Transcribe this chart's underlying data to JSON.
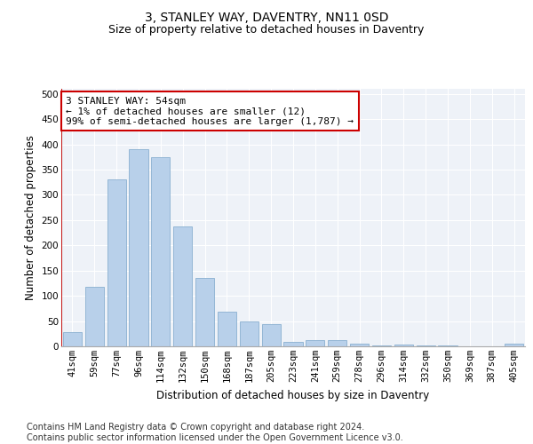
{
  "title": "3, STANLEY WAY, DAVENTRY, NN11 0SD",
  "subtitle": "Size of property relative to detached houses in Daventry",
  "xlabel": "Distribution of detached houses by size in Daventry",
  "ylabel": "Number of detached properties",
  "categories": [
    "41sqm",
    "59sqm",
    "77sqm",
    "96sqm",
    "114sqm",
    "132sqm",
    "150sqm",
    "168sqm",
    "187sqm",
    "205sqm",
    "223sqm",
    "241sqm",
    "259sqm",
    "278sqm",
    "296sqm",
    "314sqm",
    "332sqm",
    "350sqm",
    "369sqm",
    "387sqm",
    "405sqm"
  ],
  "values": [
    28,
    118,
    330,
    390,
    375,
    238,
    135,
    68,
    50,
    44,
    8,
    12,
    12,
    5,
    2,
    3,
    1,
    1,
    0,
    0,
    6
  ],
  "bar_color": "#b8d0ea",
  "bar_edge_color": "#8ab0d0",
  "annotation_line_color": "#cc0000",
  "annotation_box_color": "#cc0000",
  "annotation_text": "3 STANLEY WAY: 54sqm\n← 1% of detached houses are smaller (12)\n99% of semi-detached houses are larger (1,787) →",
  "ylim": [
    0,
    510
  ],
  "yticks": [
    0,
    50,
    100,
    150,
    200,
    250,
    300,
    350,
    400,
    450,
    500
  ],
  "footer_line1": "Contains HM Land Registry data © Crown copyright and database right 2024.",
  "footer_line2": "Contains public sector information licensed under the Open Government Licence v3.0.",
  "bg_color": "#eef2f8",
  "title_fontsize": 10,
  "subtitle_fontsize": 9,
  "axis_label_fontsize": 8.5,
  "tick_fontsize": 7.5,
  "annotation_fontsize": 8,
  "footer_fontsize": 7
}
